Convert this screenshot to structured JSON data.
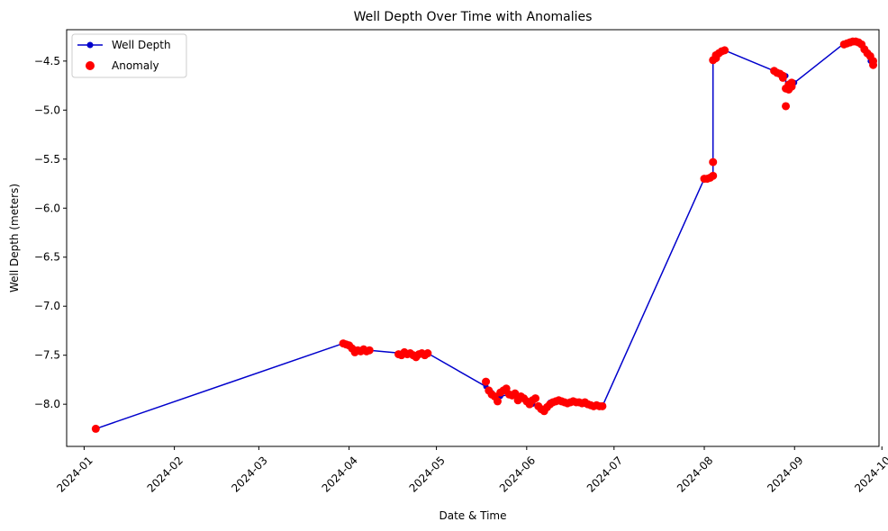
{
  "chart_data": {
    "type": "line",
    "title": "Well Depth Over Time with Anomalies",
    "xlabel": "Date & Time",
    "ylabel": "Well Depth (meters)",
    "x_type": "date",
    "xlim": [
      "2023-12-26",
      "2024-09-30"
    ],
    "ylim": [
      -8.43,
      -4.18
    ],
    "x_ticks": [
      "2024-01",
      "2024-02",
      "2024-03",
      "2024-04",
      "2024-05",
      "2024-06",
      "2024-07",
      "2024-08",
      "2024-09",
      "2024-10"
    ],
    "y_ticks": [
      -4.5,
      -5.0,
      -5.5,
      -6.0,
      -6.5,
      -7.0,
      -7.5,
      -8.0
    ],
    "y_tick_labels": [
      "−4.5",
      "−5.0",
      "−5.5",
      "−6.0",
      "−6.5",
      "−7.0",
      "−7.5",
      "−8.0"
    ],
    "legend_position": "upper-left",
    "grid": false,
    "series": [
      {
        "name": "Well Depth",
        "kind": "line",
        "color": "#0000cc",
        "points": [
          [
            "2024-01-05",
            -8.25
          ],
          [
            "2024-03-30",
            -7.38
          ],
          [
            "2024-04-01",
            -7.4
          ],
          [
            "2024-04-03",
            -7.44
          ],
          [
            "2024-04-05",
            -7.45
          ],
          [
            "2024-04-08",
            -7.45
          ],
          [
            "2024-04-19",
            -7.48
          ],
          [
            "2024-04-22",
            -7.49
          ],
          [
            "2024-04-25",
            -7.49
          ],
          [
            "2024-04-28",
            -7.48
          ],
          [
            "2024-05-18",
            -7.82
          ],
          [
            "2024-05-20",
            -7.88
          ],
          [
            "2024-05-23",
            -7.92
          ],
          [
            "2024-05-26",
            -7.9
          ],
          [
            "2024-05-29",
            -7.93
          ],
          [
            "2024-06-01",
            -7.96
          ],
          [
            "2024-06-03",
            -8.0
          ],
          [
            "2024-06-06",
            -8.04
          ],
          [
            "2024-06-09",
            -7.98
          ],
          [
            "2024-06-12",
            -7.97
          ],
          [
            "2024-06-15",
            -7.98
          ],
          [
            "2024-06-18",
            -7.98
          ],
          [
            "2024-06-21",
            -8.0
          ],
          [
            "2024-06-24",
            -8.01
          ],
          [
            "2024-06-27",
            -8.02
          ],
          [
            "2024-08-01",
            -5.7
          ],
          [
            "2024-08-03",
            -5.69
          ],
          [
            "2024-08-04",
            -5.68
          ],
          [
            "2024-08-04",
            -5.53
          ],
          [
            "2024-08-04",
            -4.49
          ],
          [
            "2024-08-05",
            -4.45
          ],
          [
            "2024-08-06",
            -4.42
          ],
          [
            "2024-08-08",
            -4.39
          ],
          [
            "2024-08-25",
            -4.6
          ],
          [
            "2024-08-27",
            -4.62
          ],
          [
            "2024-08-29",
            -4.65
          ],
          [
            "2024-08-29",
            -4.78
          ],
          [
            "2024-08-30",
            -4.75
          ],
          [
            "2024-09-01",
            -4.72
          ],
          [
            "2024-09-18",
            -4.32
          ],
          [
            "2024-09-20",
            -4.31
          ],
          [
            "2024-09-22",
            -4.3
          ],
          [
            "2024-09-24",
            -4.32
          ],
          [
            "2024-09-25",
            -4.38
          ],
          [
            "2024-09-26",
            -4.43
          ],
          [
            "2024-09-27",
            -4.5
          ],
          [
            "2024-09-28",
            -4.52
          ]
        ]
      },
      {
        "name": "Anomaly",
        "kind": "scatter",
        "color": "#ff0000",
        "points": [
          [
            "2024-01-05",
            -8.25
          ],
          [
            "2024-03-30",
            -7.38
          ],
          [
            "2024-03-31",
            -7.39
          ],
          [
            "2024-04-01",
            -7.4
          ],
          [
            "2024-04-02",
            -7.43
          ],
          [
            "2024-04-03",
            -7.47
          ],
          [
            "2024-04-04",
            -7.45
          ],
          [
            "2024-04-05",
            -7.46
          ],
          [
            "2024-04-06",
            -7.44
          ],
          [
            "2024-04-07",
            -7.46
          ],
          [
            "2024-04-08",
            -7.45
          ],
          [
            "2024-04-18",
            -7.49
          ],
          [
            "2024-04-19",
            -7.5
          ],
          [
            "2024-04-20",
            -7.47
          ],
          [
            "2024-04-21",
            -7.49
          ],
          [
            "2024-04-22",
            -7.48
          ],
          [
            "2024-04-23",
            -7.5
          ],
          [
            "2024-04-24",
            -7.52
          ],
          [
            "2024-04-25",
            -7.49
          ],
          [
            "2024-04-26",
            -7.48
          ],
          [
            "2024-04-27",
            -7.5
          ],
          [
            "2024-04-28",
            -7.48
          ],
          [
            "2024-05-18",
            -7.77
          ],
          [
            "2024-05-19",
            -7.86
          ],
          [
            "2024-05-20",
            -7.9
          ],
          [
            "2024-05-21",
            -7.92
          ],
          [
            "2024-05-22",
            -7.97
          ],
          [
            "2024-05-23",
            -7.88
          ],
          [
            "2024-05-24",
            -7.86
          ],
          [
            "2024-05-25",
            -7.84
          ],
          [
            "2024-05-26",
            -7.9
          ],
          [
            "2024-05-27",
            -7.91
          ],
          [
            "2024-05-28",
            -7.89
          ],
          [
            "2024-05-29",
            -7.96
          ],
          [
            "2024-05-30",
            -7.92
          ],
          [
            "2024-05-31",
            -7.94
          ],
          [
            "2024-06-01",
            -7.97
          ],
          [
            "2024-06-02",
            -8.0
          ],
          [
            "2024-06-03",
            -7.96
          ],
          [
            "2024-06-04",
            -7.94
          ],
          [
            "2024-06-05",
            -8.02
          ],
          [
            "2024-06-06",
            -8.05
          ],
          [
            "2024-06-07",
            -8.07
          ],
          [
            "2024-06-08",
            -8.03
          ],
          [
            "2024-06-09",
            -8.0
          ],
          [
            "2024-06-10",
            -7.98
          ],
          [
            "2024-06-11",
            -7.97
          ],
          [
            "2024-06-12",
            -7.96
          ],
          [
            "2024-06-13",
            -7.97
          ],
          [
            "2024-06-14",
            -7.98
          ],
          [
            "2024-06-15",
            -7.99
          ],
          [
            "2024-06-16",
            -7.98
          ],
          [
            "2024-06-17",
            -7.97
          ],
          [
            "2024-06-18",
            -7.98
          ],
          [
            "2024-06-19",
            -7.98
          ],
          [
            "2024-06-20",
            -7.99
          ],
          [
            "2024-06-21",
            -7.98
          ],
          [
            "2024-06-22",
            -8.0
          ],
          [
            "2024-06-23",
            -8.01
          ],
          [
            "2024-06-24",
            -8.02
          ],
          [
            "2024-06-25",
            -8.01
          ],
          [
            "2024-06-26",
            -8.02
          ],
          [
            "2024-06-27",
            -8.02
          ],
          [
            "2024-08-01",
            -5.7
          ],
          [
            "2024-08-02",
            -5.7
          ],
          [
            "2024-08-03",
            -5.69
          ],
          [
            "2024-08-04",
            -5.67
          ],
          [
            "2024-08-04",
            -5.53
          ],
          [
            "2024-08-04",
            -4.49
          ],
          [
            "2024-08-05",
            -4.47
          ],
          [
            "2024-08-05",
            -4.44
          ],
          [
            "2024-08-06",
            -4.42
          ],
          [
            "2024-08-07",
            -4.4
          ],
          [
            "2024-08-08",
            -4.39
          ],
          [
            "2024-08-25",
            -4.6
          ],
          [
            "2024-08-26",
            -4.62
          ],
          [
            "2024-08-27",
            -4.63
          ],
          [
            "2024-08-28",
            -4.65
          ],
          [
            "2024-08-28",
            -4.67
          ],
          [
            "2024-08-29",
            -4.96
          ],
          [
            "2024-08-29",
            -4.78
          ],
          [
            "2024-08-30",
            -4.74
          ],
          [
            "2024-08-30",
            -4.79
          ],
          [
            "2024-08-31",
            -4.76
          ],
          [
            "2024-08-31",
            -4.72
          ],
          [
            "2024-09-18",
            -4.33
          ],
          [
            "2024-09-19",
            -4.32
          ],
          [
            "2024-09-20",
            -4.31
          ],
          [
            "2024-09-21",
            -4.3
          ],
          [
            "2024-09-22",
            -4.3
          ],
          [
            "2024-09-23",
            -4.31
          ],
          [
            "2024-09-24",
            -4.33
          ],
          [
            "2024-09-25",
            -4.38
          ],
          [
            "2024-09-26",
            -4.42
          ],
          [
            "2024-09-27",
            -4.45
          ],
          [
            "2024-09-28",
            -4.5
          ],
          [
            "2024-09-28",
            -4.54
          ]
        ]
      }
    ]
  }
}
